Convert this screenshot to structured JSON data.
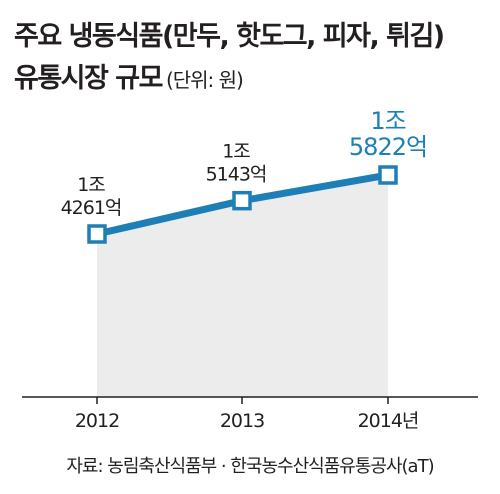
{
  "title": {
    "line1": "주요 냉동식품(만두, 핫도그, 피자, 튀김)",
    "line2": "유통시장 규모",
    "unit": "(단위: 원)"
  },
  "source": "자료: 농림축산식품부 · 한국농수산식품유통공사(aT)",
  "colors": {
    "line": "#1e7fb7",
    "highlight_label": "#1e7fb7",
    "area": "#ececec",
    "axis": "#231f20",
    "text": "#231f20"
  },
  "chart_data": {
    "type": "line",
    "x": [
      "2012",
      "2013",
      "2014"
    ],
    "xtick_labels": [
      "2012",
      "2013",
      "2014년"
    ],
    "values": [
      14261,
      15143,
      15822
    ],
    "value_unit": "억원",
    "data_labels": [
      [
        "1조",
        "4261억"
      ],
      [
        "1조",
        "5143억"
      ],
      [
        "1조",
        "5822억"
      ]
    ],
    "highlight_index": 2,
    "fill_under_line": true,
    "title": "주요 냉동식품(만두, 핫도그, 피자, 튀김) 유통시장 규모",
    "xlabel": "",
    "ylabel": "",
    "grid": false
  }
}
